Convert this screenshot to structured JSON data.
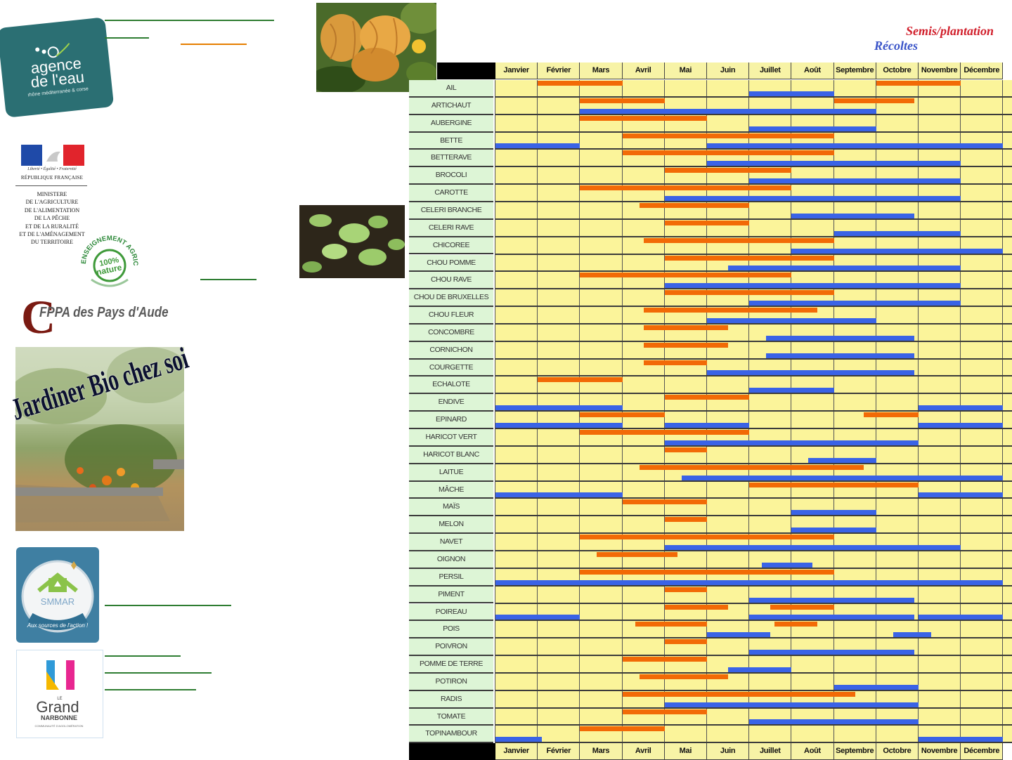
{
  "logos": {
    "agence_line1": "agence",
    "agence_line2": "de l'eau",
    "agence_line3": "rhône méditerranée & corse",
    "marianne_motto": "Liberté • Égalité • Fraternité",
    "marianne_republic": "RÉPUBLIQUE FRANÇAISE",
    "ministry": "MINISTERE\nDE L'AGRICULTURE\nDE L'ALIMENTATION\nDE LA PÊCHE\nET DE LA RURALITÉ\nET DE L'AMÉNAGEMENT\nDU TERRITOIRE",
    "nature_arc": "ENSEIGNEMENT AGRICOLE",
    "nature_center_1": "100%",
    "nature_center_2": "nature",
    "cfppa_letter": "C",
    "cfppa_text": "FPPA des Pays d'Aude",
    "garden_title": "Jardiner Bio chez soi",
    "smmar_name": "SMMAR",
    "smmar_slogan": "Aux sources de l'action !",
    "narbonne_le": "LE",
    "narbonne_grand": "Grand",
    "narbonne_name": "NARBONNE",
    "narbonne_sub": "COMMUNAUTÉ D'AGGLOMÉRATION"
  },
  "legend": {
    "semis": "Semis/plantation",
    "recoltes": "Récoltes",
    "semis_color": "#f26a06",
    "recoltes_color": "#3a63e6"
  },
  "months": [
    "Janvier",
    "Février",
    "Mars",
    "Avril",
    "Mai",
    "Juin",
    "Juillet",
    "Août",
    "Septembre",
    "Octobre",
    "Novembre",
    "Décembre"
  ],
  "vegetables": [
    {
      "name": "AIL",
      "semis": [
        [
          2,
          4
        ],
        [
          10,
          12
        ]
      ],
      "recoltes": [
        [
          7,
          9
        ]
      ]
    },
    {
      "name": "ARTICHAUT",
      "semis": [
        [
          3,
          5
        ],
        [
          9,
          10.9
        ]
      ],
      "recoltes": [
        [
          3,
          10
        ]
      ]
    },
    {
      "name": "AUBERGINE",
      "semis": [
        [
          3,
          6
        ]
      ],
      "recoltes": [
        [
          7,
          10
        ]
      ]
    },
    {
      "name": "BETTE",
      "semis": [
        [
          4,
          9
        ]
      ],
      "recoltes": [
        [
          1,
          3
        ],
        [
          6,
          13
        ]
      ]
    },
    {
      "name": "BETTERAVE",
      "semis": [
        [
          4,
          9
        ]
      ],
      "recoltes": [
        [
          6,
          12
        ]
      ]
    },
    {
      "name": "BROCOLI",
      "semis": [
        [
          5,
          8
        ]
      ],
      "recoltes": [
        [
          7,
          12
        ]
      ]
    },
    {
      "name": "CAROTTE",
      "semis": [
        [
          3,
          8
        ]
      ],
      "recoltes": [
        [
          5,
          12
        ]
      ]
    },
    {
      "name": "CELERI BRANCHE",
      "semis": [
        [
          4.4,
          7
        ]
      ],
      "recoltes": [
        [
          8,
          10.9
        ]
      ]
    },
    {
      "name": "CELERI RAVE",
      "semis": [
        [
          5,
          7
        ]
      ],
      "recoltes": [
        [
          9,
          12
        ]
      ]
    },
    {
      "name": "CHICOREE",
      "semis": [
        [
          4.5,
          9
        ]
      ],
      "recoltes": [
        [
          8,
          13
        ]
      ]
    },
    {
      "name": "CHOU POMME",
      "semis": [
        [
          5,
          9
        ]
      ],
      "recoltes": [
        [
          6.5,
          12
        ]
      ]
    },
    {
      "name": "CHOU RAVE",
      "semis": [
        [
          3,
          8
        ]
      ],
      "recoltes": [
        [
          5,
          12
        ]
      ]
    },
    {
      "name": "CHOU DE BRUXELLES",
      "semis": [
        [
          5,
          9
        ]
      ],
      "recoltes": [
        [
          7,
          12
        ]
      ]
    },
    {
      "name": "CHOU FLEUR",
      "semis": [
        [
          4.5,
          8.6
        ]
      ],
      "recoltes": [
        [
          6,
          10
        ]
      ]
    },
    {
      "name": "CONCOMBRE",
      "semis": [
        [
          4.5,
          6.5
        ]
      ],
      "recoltes": [
        [
          7.4,
          10.9
        ]
      ]
    },
    {
      "name": "CORNICHON",
      "semis": [
        [
          4.5,
          6.5
        ]
      ],
      "recoltes": [
        [
          7.4,
          10.9
        ]
      ]
    },
    {
      "name": "COURGETTE",
      "semis": [
        [
          4.5,
          6
        ]
      ],
      "recoltes": [
        [
          6,
          10.9
        ]
      ]
    },
    {
      "name": "ECHALOTE",
      "semis": [
        [
          2,
          4
        ]
      ],
      "recoltes": [
        [
          7,
          9
        ]
      ]
    },
    {
      "name": "ENDIVE",
      "semis": [
        [
          5,
          7
        ]
      ],
      "recoltes": [
        [
          1,
          4
        ],
        [
          11,
          13
        ]
      ]
    },
    {
      "name": "EPINARD",
      "semis": [
        [
          3,
          5
        ],
        [
          9.7,
          11
        ]
      ],
      "recoltes": [
        [
          1,
          4
        ],
        [
          5,
          7
        ],
        [
          11,
          13
        ]
      ]
    },
    {
      "name": "HARICOT VERT",
      "semis": [
        [
          3,
          7
        ]
      ],
      "recoltes": [
        [
          5,
          11
        ]
      ]
    },
    {
      "name": "HARICOT BLANC",
      "semis": [
        [
          5,
          6
        ]
      ],
      "recoltes": [
        [
          8.4,
          10
        ]
      ]
    },
    {
      "name": "LAITUE",
      "semis": [
        [
          4.4,
          9.7
        ]
      ],
      "recoltes": [
        [
          5.4,
          13
        ]
      ]
    },
    {
      "name": "MÂCHE",
      "semis": [
        [
          7,
          11
        ]
      ],
      "recoltes": [
        [
          1,
          4
        ],
        [
          11,
          13
        ]
      ]
    },
    {
      "name": "MAÏS",
      "semis": [
        [
          4,
          6
        ]
      ],
      "recoltes": [
        [
          8,
          10
        ]
      ]
    },
    {
      "name": "MELON",
      "semis": [
        [
          5,
          6
        ]
      ],
      "recoltes": [
        [
          8,
          10
        ]
      ]
    },
    {
      "name": "NAVET",
      "semis": [
        [
          3,
          9
        ]
      ],
      "recoltes": [
        [
          5,
          12
        ]
      ]
    },
    {
      "name": "OIGNON",
      "semis": [
        [
          3.4,
          5.3
        ]
      ],
      "recoltes": [
        [
          7.3,
          8.5
        ]
      ]
    },
    {
      "name": "PERSIL",
      "semis": [
        [
          3,
          9
        ]
      ],
      "recoltes": [
        [
          1,
          13
        ]
      ]
    },
    {
      "name": "PIMENT",
      "semis": [
        [
          5,
          6
        ]
      ],
      "recoltes": [
        [
          7,
          10.9
        ]
      ]
    },
    {
      "name": "POIREAU",
      "semis": [
        [
          5,
          6.5
        ],
        [
          7.5,
          9
        ]
      ],
      "recoltes": [
        [
          1,
          3
        ],
        [
          7,
          10.9
        ],
        [
          11,
          13
        ]
      ]
    },
    {
      "name": "POIS",
      "semis": [
        [
          4.3,
          6
        ],
        [
          7.6,
          8.6
        ]
      ],
      "recoltes": [
        [
          6,
          7.5
        ],
        [
          10.4,
          11.3
        ]
      ]
    },
    {
      "name": "POIVRON",
      "semis": [
        [
          5,
          6
        ]
      ],
      "recoltes": [
        [
          7,
          10.9
        ]
      ]
    },
    {
      "name": "POMME DE TERRE",
      "semis": [
        [
          4,
          6
        ]
      ],
      "recoltes": [
        [
          6.5,
          8
        ]
      ]
    },
    {
      "name": "POTIRON",
      "semis": [
        [
          4.4,
          6.5
        ]
      ],
      "recoltes": [
        [
          9,
          11
        ]
      ]
    },
    {
      "name": "RADIS",
      "semis": [
        [
          4,
          9.5
        ]
      ],
      "recoltes": [
        [
          5,
          11
        ]
      ]
    },
    {
      "name": "TOMATE",
      "semis": [
        [
          4,
          6
        ]
      ],
      "recoltes": [
        [
          7,
          11
        ]
      ]
    },
    {
      "name": "TOPINAMBOUR",
      "semis": [
        [
          3,
          5
        ]
      ],
      "recoltes": [
        [
          1,
          2.1
        ],
        [
          11,
          13
        ]
      ]
    }
  ]
}
